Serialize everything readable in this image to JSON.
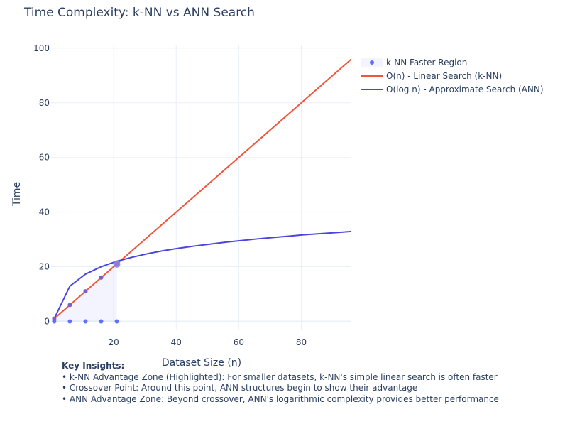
{
  "chart_data": {
    "type": "line",
    "title": "Time Complexity: k-NN vs ANN Search",
    "xlabel": "Dataset Size (n)",
    "ylabel": "Time",
    "xlim": [
      0,
      96
    ],
    "ylim": [
      -3,
      101
    ],
    "x_ticks": [
      20,
      40,
      60,
      80
    ],
    "y_ticks": [
      0,
      20,
      40,
      60,
      80,
      100
    ],
    "grid": true,
    "legend_position": "top-right",
    "series": [
      {
        "name": "k-NN Faster Region",
        "kind": "markers+fill",
        "color": "#636efa",
        "x": [
          1,
          6,
          11,
          16,
          21
        ],
        "y": [
          0,
          0,
          0,
          0,
          0
        ],
        "fill_to": [
          1,
          6,
          11,
          16,
          21
        ]
      },
      {
        "name": "O(n) - Linear Search (k-NN)",
        "kind": "line",
        "color": "#ef553b",
        "x": [
          1,
          96
        ],
        "y": [
          1,
          96
        ]
      },
      {
        "name": "O(log n) - Approximate Search (ANN)",
        "kind": "line",
        "color": "#4b44e0",
        "x": [
          1,
          6,
          11,
          16,
          21,
          26,
          31,
          36,
          41,
          46,
          51,
          56,
          61,
          66,
          71,
          76,
          81,
          86,
          91,
          96
        ],
        "y": [
          1,
          12.9,
          17.3,
          20.0,
          22.0,
          23.5,
          24.8,
          25.9,
          26.8,
          27.6,
          28.3,
          29.0,
          29.6,
          30.2,
          30.7,
          31.2,
          31.7,
          32.1,
          32.5,
          32.9
        ]
      }
    ],
    "crossover_point": {
      "x": 21,
      "y": 21
    }
  },
  "insights": {
    "heading": "Key Insights:",
    "lines": [
      "• k-NN Advantage Zone (Highlighted): For smaller datasets, k-NN's simple linear search is often faster",
      "• Crossover Point: Around this point, ANN structures begin to show their advantage",
      "• ANN Advantage Zone: Beyond crossover, ANN's logarithmic complexity provides better performance"
    ]
  }
}
